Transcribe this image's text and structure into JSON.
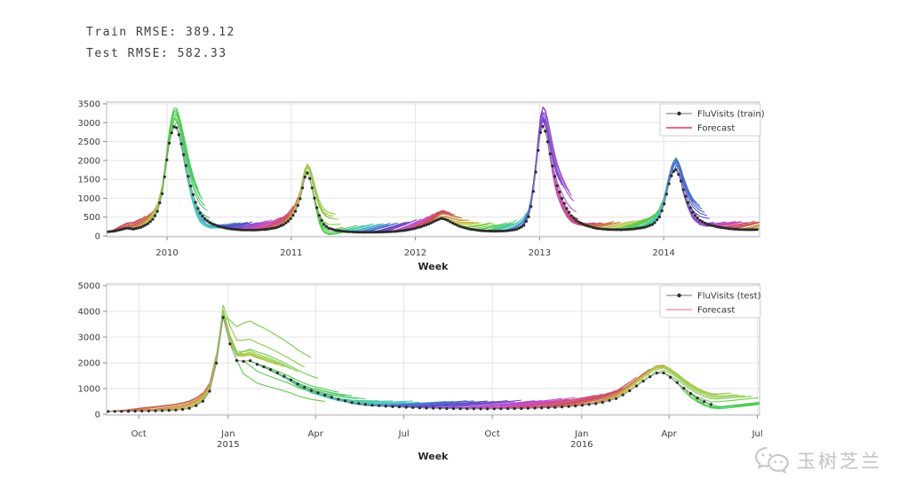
{
  "metrics": {
    "train_rmse": "Train RMSE: 389.12",
    "test_rmse": "Test RMSE: 582.33"
  },
  "watermark": {
    "text": "玉树芝兰",
    "icon": "wechat-icon"
  },
  "colors": {
    "background": "#ffffff",
    "grid": "#e4e4e4",
    "spine": "#bdbdbd",
    "tick": "#8a8a8a",
    "tick_text": "#3c3c3c",
    "axis_label_text": "#262626",
    "observed_line": "#8c8c8c",
    "observed_dot": "#2b2b2b",
    "legend_border": "#cfcfcf",
    "legend_text": "#333333",
    "watermark": "#c6c6c6"
  },
  "chart_data": [
    {
      "type": "line",
      "id": "train",
      "xlabel": "Week",
      "ylabel": "",
      "xlim": [
        2009.513,
        2014.772
      ],
      "ylim": [
        0,
        3500
      ],
      "yticks": [
        0,
        500,
        1000,
        1500,
        2000,
        2500,
        3000,
        3500
      ],
      "xticks": [
        {
          "x": 2010,
          "label": "2010"
        },
        {
          "x": 2011,
          "label": "2011"
        },
        {
          "x": 2012,
          "label": "2012"
        },
        {
          "x": 2013,
          "label": "2013"
        },
        {
          "x": 2014,
          "label": "2014"
        }
      ],
      "grid": true,
      "legend": {
        "position": "upper right",
        "entries": [
          {
            "label": "FluVisits (train)",
            "type": "marker-line",
            "color": "#2b2b2b"
          },
          {
            "label": "Forecast",
            "type": "line",
            "color": "#f0536e"
          }
        ]
      },
      "series_observed": {
        "name": "FluVisits (train)",
        "units": "weekly flu visits (values estimated from gridlines)",
        "points": [
          [
            2009.52,
            110
          ],
          [
            2009.58,
            130
          ],
          [
            2009.63,
            170
          ],
          [
            2009.68,
            210
          ],
          [
            2009.73,
            180
          ],
          [
            2009.79,
            230
          ],
          [
            2009.84,
            310
          ],
          [
            2009.88,
            420
          ],
          [
            2009.92,
            620
          ],
          [
            2009.96,
            1100
          ],
          [
            2009.99,
            1800
          ],
          [
            2010.02,
            2500
          ],
          [
            2010.05,
            2900
          ],
          [
            2010.08,
            2860
          ],
          [
            2010.11,
            2500
          ],
          [
            2010.14,
            2050
          ],
          [
            2010.17,
            1600
          ],
          [
            2010.2,
            1200
          ],
          [
            2010.23,
            880
          ],
          [
            2010.26,
            640
          ],
          [
            2010.3,
            470
          ],
          [
            2010.35,
            340
          ],
          [
            2010.42,
            250
          ],
          [
            2010.5,
            190
          ],
          [
            2010.6,
            160
          ],
          [
            2010.7,
            155
          ],
          [
            2010.8,
            175
          ],
          [
            2010.88,
            220
          ],
          [
            2010.94,
            300
          ],
          [
            2010.99,
            430
          ],
          [
            2011.03,
            620
          ],
          [
            2011.07,
            950
          ],
          [
            2011.1,
            1400
          ],
          [
            2011.12,
            1700
          ],
          [
            2011.14,
            1640
          ],
          [
            2011.17,
            1250
          ],
          [
            2011.2,
            820
          ],
          [
            2011.23,
            500
          ],
          [
            2011.26,
            320
          ],
          [
            2011.3,
            210
          ],
          [
            2011.36,
            150
          ],
          [
            2011.44,
            115
          ],
          [
            2011.54,
            100
          ],
          [
            2011.64,
            98
          ],
          [
            2011.74,
            105
          ],
          [
            2011.84,
            120
          ],
          [
            2011.92,
            150
          ],
          [
            2011.99,
            195
          ],
          [
            2012.05,
            250
          ],
          [
            2012.11,
            320
          ],
          [
            2012.16,
            400
          ],
          [
            2012.21,
            470
          ],
          [
            2012.25,
            430
          ],
          [
            2012.3,
            340
          ],
          [
            2012.36,
            250
          ],
          [
            2012.44,
            180
          ],
          [
            2012.53,
            140
          ],
          [
            2012.63,
            125
          ],
          [
            2012.73,
            135
          ],
          [
            2012.81,
            170
          ],
          [
            2012.87,
            260
          ],
          [
            2012.91,
            480
          ],
          [
            2012.94,
            900
          ],
          [
            2012.97,
            1700
          ],
          [
            2013.0,
            2600
          ],
          [
            2013.02,
            2950
          ],
          [
            2013.05,
            2750
          ],
          [
            2013.08,
            2250
          ],
          [
            2013.11,
            1750
          ],
          [
            2013.14,
            1350
          ],
          [
            2013.18,
            1000
          ],
          [
            2013.22,
            720
          ],
          [
            2013.26,
            520
          ],
          [
            2013.31,
            380
          ],
          [
            2013.38,
            270
          ],
          [
            2013.46,
            200
          ],
          [
            2013.56,
            170
          ],
          [
            2013.66,
            165
          ],
          [
            2013.76,
            185
          ],
          [
            2013.85,
            230
          ],
          [
            2013.92,
            320
          ],
          [
            2013.97,
            520
          ],
          [
            2014.01,
            900
          ],
          [
            2014.04,
            1350
          ],
          [
            2014.07,
            1680
          ],
          [
            2014.1,
            1760
          ],
          [
            2014.13,
            1560
          ],
          [
            2014.16,
            1200
          ],
          [
            2014.2,
            850
          ],
          [
            2014.24,
            590
          ],
          [
            2014.29,
            420
          ],
          [
            2014.35,
            310
          ],
          [
            2014.43,
            240
          ],
          [
            2014.52,
            195
          ],
          [
            2014.61,
            170
          ],
          [
            2014.7,
            165
          ],
          [
            2014.77,
            170
          ]
        ]
      },
      "forecast_fan": {
        "name": "Forecast",
        "description": "weekly rolling-origin forecast trajectories, hue cycles with origin week",
        "origin_step_weeks": 1,
        "horizon_weeks": 13,
        "hue_start": 340,
        "hue_per_week": 5.6,
        "saturation": 62,
        "lightness": 47,
        "overshoot": 1.3,
        "decay": 0.95,
        "band_bias": 0.0045,
        "opacity": 0.85
      }
    },
    {
      "type": "line",
      "id": "test",
      "xlabel": "Week",
      "ylabel": "",
      "xlim": [
        2014.656,
        2016.503
      ],
      "ylim": [
        0,
        5000
      ],
      "yticks": [
        0,
        1000,
        2000,
        3000,
        4000,
        5000
      ],
      "xticks": [
        {
          "x": 2014.747,
          "label": "Oct"
        },
        {
          "x": 2015.0,
          "label": "Jan",
          "sublabel": "2015"
        },
        {
          "x": 2015.247,
          "label": "Apr"
        },
        {
          "x": 2015.497,
          "label": "Jul"
        },
        {
          "x": 2015.747,
          "label": "Oct"
        },
        {
          "x": 2016.0,
          "label": "Jan",
          "sublabel": "2016"
        },
        {
          "x": 2016.247,
          "label": "Apr"
        },
        {
          "x": 2016.497,
          "label": "Jul"
        }
      ],
      "grid": true,
      "legend": {
        "position": "upper right",
        "entries": [
          {
            "label": "FluVisits (test)",
            "type": "marker-line",
            "color": "#2b2b2b"
          },
          {
            "label": "Forecast",
            "type": "line",
            "color": "#f7a8b8"
          }
        ]
      },
      "series_observed": {
        "name": "FluVisits (test)",
        "units": "weekly flu visits (values estimated from gridlines)",
        "points": [
          [
            2014.66,
            110
          ],
          [
            2014.73,
            120
          ],
          [
            2014.8,
            135
          ],
          [
            2014.86,
            165
          ],
          [
            2014.9,
            260
          ],
          [
            2014.93,
            520
          ],
          [
            2014.95,
            950
          ],
          [
            2014.97,
            2200
          ],
          [
            2014.98,
            4100
          ],
          [
            2015.0,
            2950
          ],
          [
            2015.02,
            2100
          ],
          [
            2015.04,
            2050
          ],
          [
            2015.06,
            2100
          ],
          [
            2015.08,
            1950
          ],
          [
            2015.11,
            1800
          ],
          [
            2015.14,
            1600
          ],
          [
            2015.17,
            1400
          ],
          [
            2015.2,
            1150
          ],
          [
            2015.23,
            950
          ],
          [
            2015.27,
            760
          ],
          [
            2015.31,
            590
          ],
          [
            2015.35,
            460
          ],
          [
            2015.4,
            360
          ],
          [
            2015.46,
            300
          ],
          [
            2015.54,
            250
          ],
          [
            2015.63,
            220
          ],
          [
            2015.73,
            210
          ],
          [
            2015.83,
            225
          ],
          [
            2015.92,
            265
          ],
          [
            2015.99,
            330
          ],
          [
            2016.05,
            430
          ],
          [
            2016.1,
            620
          ],
          [
            2016.14,
            950
          ],
          [
            2016.18,
            1350
          ],
          [
            2016.21,
            1600
          ],
          [
            2016.23,
            1620
          ],
          [
            2016.26,
            1350
          ],
          [
            2016.29,
            1000
          ],
          [
            2016.32,
            680
          ],
          [
            2016.35,
            470
          ],
          [
            2016.37,
            360
          ]
        ]
      },
      "forecast_fan": {
        "name": "Forecast",
        "description": "weekly rolling-origin forecast trajectories, hue cycles with origin week",
        "origin_step_weeks": 1,
        "horizon_weeks": 13,
        "hue_start": 5,
        "hue_per_week": 5.5,
        "saturation": 62,
        "lightness": 47,
        "overshoot": 1.3,
        "decay": 0.95,
        "band_bias": 0.0045,
        "opacity": 0.85
      }
    }
  ]
}
